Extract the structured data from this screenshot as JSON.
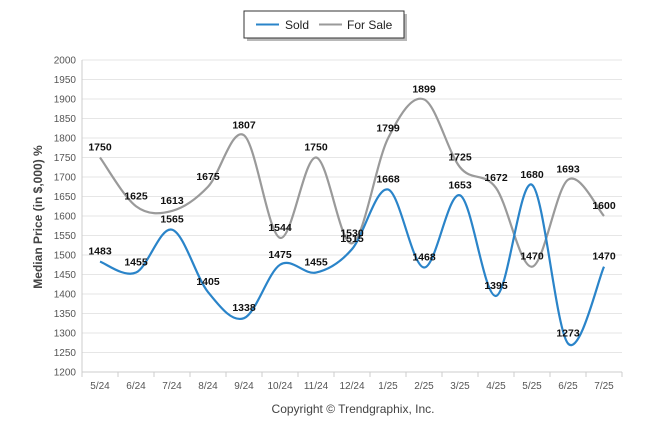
{
  "chart_data": {
    "type": "line",
    "categories": [
      "5/24",
      "6/24",
      "7/24",
      "8/24",
      "9/24",
      "10/24",
      "11/24",
      "12/24",
      "1/25",
      "2/25",
      "3/25",
      "4/25",
      "5/25",
      "6/25",
      "7/25"
    ],
    "series": [
      {
        "name": "Sold",
        "color": "#2a84c9",
        "values": [
          1483,
          1455,
          1565,
          1405,
          1338,
          1475,
          1455,
          1515,
          1668,
          1468,
          1653,
          1395,
          1680,
          1273,
          1470
        ]
      },
      {
        "name": "For Sale",
        "color": "#9a9a9a",
        "values": [
          1750,
          1625,
          1613,
          1675,
          1807,
          1544,
          1750,
          1530,
          1799,
          1899,
          1725,
          1672,
          1470,
          1693,
          1600
        ]
      }
    ],
    "ylabel": "Median Price (in $,000) %",
    "ylim": [
      1200,
      2000
    ],
    "yticks": [
      1200,
      1250,
      1300,
      1350,
      1400,
      1450,
      1500,
      1550,
      1600,
      1650,
      1700,
      1750,
      1800,
      1850,
      1900,
      1950,
      2000
    ],
    "grid": true,
    "legend_position": "top-center",
    "footer": "Copyright © Trendgraphix, Inc."
  }
}
